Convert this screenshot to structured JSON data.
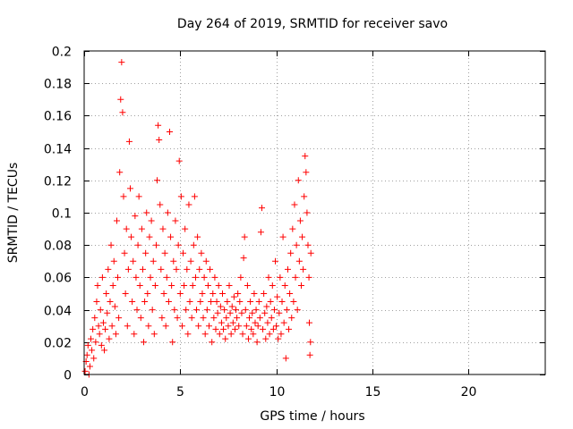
{
  "chart_data": {
    "type": "scatter",
    "title": "Day 264 of 2019, SRMTID for receiver savo",
    "xlabel": "GPS time / hours",
    "ylabel": "SRMTID / TECUs",
    "xlim": [
      0,
      24
    ],
    "ylim": [
      0,
      0.2
    ],
    "x_ticks": [
      0,
      5,
      10,
      15,
      20
    ],
    "x_tick_labels": [
      "0",
      "5",
      "10",
      "15",
      "20"
    ],
    "y_ticks": [
      0,
      0.02,
      0.04,
      0.06,
      0.08,
      0.1,
      0.12,
      0.14,
      0.16,
      0.18,
      0.2
    ],
    "y_tick_labels": [
      "0",
      "0.02",
      "0.04",
      "0.06",
      "0.08",
      "0.1",
      "0.12",
      "0.14",
      "0.16",
      "0.18",
      "0.2"
    ],
    "grid": true,
    "marker": "+",
    "color": "#ff0000",
    "series": [
      {
        "name": "SRMTID",
        "points": [
          [
            0.05,
            0.002
          ],
          [
            0.1,
            0.008
          ],
          [
            0.15,
            0.012
          ],
          [
            0.2,
            0.018
          ],
          [
            0.25,
            0.0
          ],
          [
            0.3,
            0.005
          ],
          [
            0.35,
            0.022
          ],
          [
            0.4,
            0.015
          ],
          [
            0.45,
            0.028
          ],
          [
            0.5,
            0.01
          ],
          [
            0.55,
            0.035
          ],
          [
            0.6,
            0.02
          ],
          [
            0.65,
            0.045
          ],
          [
            0.7,
            0.055
          ],
          [
            0.75,
            0.03
          ],
          [
            0.8,
            0.025
          ],
          [
            0.85,
            0.04
          ],
          [
            0.9,
            0.018
          ],
          [
            0.95,
            0.06
          ],
          [
            1.0,
            0.032
          ],
          [
            1.05,
            0.015
          ],
          [
            1.1,
            0.028
          ],
          [
            1.15,
            0.05
          ],
          [
            1.2,
            0.038
          ],
          [
            1.25,
            0.065
          ],
          [
            1.3,
            0.022
          ],
          [
            1.35,
            0.045
          ],
          [
            1.4,
            0.08
          ],
          [
            1.45,
            0.03
          ],
          [
            1.5,
            0.055
          ],
          [
            1.55,
            0.07
          ],
          [
            1.6,
            0.042
          ],
          [
            1.65,
            0.025
          ],
          [
            1.7,
            0.095
          ],
          [
            1.75,
            0.06
          ],
          [
            1.8,
            0.035
          ],
          [
            1.85,
            0.125
          ],
          [
            1.9,
            0.17
          ],
          [
            1.95,
            0.193
          ],
          [
            2.0,
            0.162
          ],
          [
            2.05,
            0.11
          ],
          [
            2.1,
            0.075
          ],
          [
            2.15,
            0.05
          ],
          [
            2.2,
            0.09
          ],
          [
            2.25,
            0.03
          ],
          [
            2.3,
            0.065
          ],
          [
            2.35,
            0.144
          ],
          [
            2.4,
            0.115
          ],
          [
            2.45,
            0.085
          ],
          [
            2.5,
            0.045
          ],
          [
            2.55,
            0.07
          ],
          [
            2.6,
            0.025
          ],
          [
            2.65,
            0.098
          ],
          [
            2.7,
            0.06
          ],
          [
            2.75,
            0.04
          ],
          [
            2.8,
            0.08
          ],
          [
            2.85,
            0.11
          ],
          [
            2.9,
            0.055
          ],
          [
            2.95,
            0.035
          ],
          [
            3.0,
            0.09
          ],
          [
            3.05,
            0.065
          ],
          [
            3.1,
            0.02
          ],
          [
            3.15,
            0.045
          ],
          [
            3.2,
            0.075
          ],
          [
            3.25,
            0.1
          ],
          [
            3.3,
            0.05
          ],
          [
            3.35,
            0.03
          ],
          [
            3.4,
            0.085
          ],
          [
            3.45,
            0.06
          ],
          [
            3.5,
            0.095
          ],
          [
            3.55,
            0.04
          ],
          [
            3.6,
            0.07
          ],
          [
            3.65,
            0.025
          ],
          [
            3.7,
            0.055
          ],
          [
            3.75,
            0.08
          ],
          [
            3.8,
            0.12
          ],
          [
            3.85,
            0.154
          ],
          [
            3.9,
            0.145
          ],
          [
            3.95,
            0.105
          ],
          [
            4.0,
            0.065
          ],
          [
            4.05,
            0.035
          ],
          [
            4.1,
            0.09
          ],
          [
            4.15,
            0.05
          ],
          [
            4.2,
            0.075
          ],
          [
            4.25,
            0.03
          ],
          [
            4.3,
            0.06
          ],
          [
            4.35,
            0.1
          ],
          [
            4.4,
            0.045
          ],
          [
            4.45,
            0.15
          ],
          [
            4.5,
            0.085
          ],
          [
            4.55,
            0.055
          ],
          [
            4.6,
            0.02
          ],
          [
            4.65,
            0.07
          ],
          [
            4.7,
            0.04
          ],
          [
            4.75,
            0.095
          ],
          [
            4.8,
            0.065
          ],
          [
            4.85,
            0.035
          ],
          [
            4.9,
            0.08
          ],
          [
            4.95,
            0.132
          ],
          [
            5.0,
            0.05
          ],
          [
            5.05,
            0.11
          ],
          [
            5.1,
            0.03
          ],
          [
            5.15,
            0.075
          ],
          [
            5.2,
            0.055
          ],
          [
            5.25,
            0.09
          ],
          [
            5.3,
            0.04
          ],
          [
            5.35,
            0.065
          ],
          [
            5.4,
            0.025
          ],
          [
            5.45,
            0.105
          ],
          [
            5.5,
            0.045
          ],
          [
            5.55,
            0.07
          ],
          [
            5.6,
            0.035
          ],
          [
            5.65,
            0.055
          ],
          [
            5.7,
            0.08
          ],
          [
            5.75,
            0.11
          ],
          [
            5.8,
            0.06
          ],
          [
            5.85,
            0.04
          ],
          [
            5.9,
            0.085
          ],
          [
            5.95,
            0.03
          ],
          [
            6.0,
            0.065
          ],
          [
            6.05,
            0.045
          ],
          [
            6.1,
            0.075
          ],
          [
            6.15,
            0.05
          ],
          [
            6.2,
            0.035
          ],
          [
            6.25,
            0.06
          ],
          [
            6.3,
            0.025
          ],
          [
            6.35,
            0.07
          ],
          [
            6.4,
            0.04
          ],
          [
            6.45,
            0.055
          ],
          [
            6.5,
            0.03
          ],
          [
            6.55,
            0.065
          ],
          [
            6.6,
            0.045
          ],
          [
            6.65,
            0.02
          ],
          [
            6.7,
            0.05
          ],
          [
            6.75,
            0.035
          ],
          [
            6.8,
            0.06
          ],
          [
            6.85,
            0.028
          ],
          [
            6.9,
            0.045
          ],
          [
            6.95,
            0.038
          ],
          [
            7.0,
            0.055
          ],
          [
            7.05,
            0.025
          ],
          [
            7.1,
            0.042
          ],
          [
            7.15,
            0.032
          ],
          [
            7.2,
            0.05
          ],
          [
            7.25,
            0.028
          ],
          [
            7.3,
            0.04
          ],
          [
            7.35,
            0.022
          ],
          [
            7.4,
            0.035
          ],
          [
            7.45,
            0.045
          ],
          [
            7.5,
            0.03
          ],
          [
            7.55,
            0.055
          ],
          [
            7.6,
            0.038
          ],
          [
            7.65,
            0.025
          ],
          [
            7.7,
            0.042
          ],
          [
            7.75,
            0.032
          ],
          [
            7.8,
            0.048
          ],
          [
            7.85,
            0.028
          ],
          [
            7.9,
            0.04
          ],
          [
            7.95,
            0.035
          ],
          [
            8.0,
            0.05
          ],
          [
            8.05,
            0.03
          ],
          [
            8.1,
            0.045
          ],
          [
            8.15,
            0.06
          ],
          [
            8.2,
            0.038
          ],
          [
            8.25,
            0.025
          ],
          [
            8.3,
            0.072
          ],
          [
            8.35,
            0.085
          ],
          [
            8.4,
            0.04
          ],
          [
            8.45,
            0.03
          ],
          [
            8.5,
            0.055
          ],
          [
            8.55,
            0.022
          ],
          [
            8.6,
            0.035
          ],
          [
            8.65,
            0.045
          ],
          [
            8.7,
            0.028
          ],
          [
            8.75,
            0.038
          ],
          [
            8.8,
            0.025
          ],
          [
            8.85,
            0.05
          ],
          [
            8.9,
            0.032
          ],
          [
            8.95,
            0.04
          ],
          [
            9.0,
            0.02
          ],
          [
            9.05,
            0.03
          ],
          [
            9.1,
            0.045
          ],
          [
            9.15,
            0.035
          ],
          [
            9.2,
            0.088
          ],
          [
            9.25,
            0.103
          ],
          [
            9.3,
            0.028
          ],
          [
            9.35,
            0.05
          ],
          [
            9.4,
            0.038
          ],
          [
            9.45,
            0.022
          ],
          [
            9.5,
            0.042
          ],
          [
            9.55,
            0.032
          ],
          [
            9.6,
            0.06
          ],
          [
            9.65,
            0.025
          ],
          [
            9.7,
            0.045
          ],
          [
            9.75,
            0.035
          ],
          [
            9.8,
            0.055
          ],
          [
            9.85,
            0.028
          ],
          [
            9.9,
            0.04
          ],
          [
            9.95,
            0.07
          ],
          [
            10.0,
            0.03
          ],
          [
            10.05,
            0.048
          ],
          [
            10.1,
            0.022
          ],
          [
            10.15,
            0.038
          ],
          [
            10.2,
            0.06
          ],
          [
            10.25,
            0.025
          ],
          [
            10.3,
            0.045
          ],
          [
            10.35,
            0.085
          ],
          [
            10.4,
            0.032
          ],
          [
            10.45,
            0.055
          ],
          [
            10.5,
            0.01
          ],
          [
            10.55,
            0.04
          ],
          [
            10.6,
            0.065
          ],
          [
            10.65,
            0.028
          ],
          [
            10.7,
            0.05
          ],
          [
            10.75,
            0.075
          ],
          [
            10.8,
            0.035
          ],
          [
            10.85,
            0.09
          ],
          [
            10.9,
            0.045
          ],
          [
            10.95,
            0.105
          ],
          [
            11.0,
            0.06
          ],
          [
            11.05,
            0.08
          ],
          [
            11.1,
            0.04
          ],
          [
            11.15,
            0.12
          ],
          [
            11.2,
            0.07
          ],
          [
            11.25,
            0.095
          ],
          [
            11.3,
            0.055
          ],
          [
            11.35,
            0.085
          ],
          [
            11.4,
            0.065
          ],
          [
            11.45,
            0.11
          ],
          [
            11.5,
            0.135
          ],
          [
            11.55,
            0.125
          ],
          [
            11.6,
            0.1
          ],
          [
            11.65,
            0.08
          ],
          [
            11.7,
            0.06
          ],
          [
            11.72,
            0.032
          ],
          [
            11.75,
            0.012
          ],
          [
            11.78,
            0.02
          ],
          [
            11.8,
            0.075
          ]
        ]
      }
    ]
  }
}
